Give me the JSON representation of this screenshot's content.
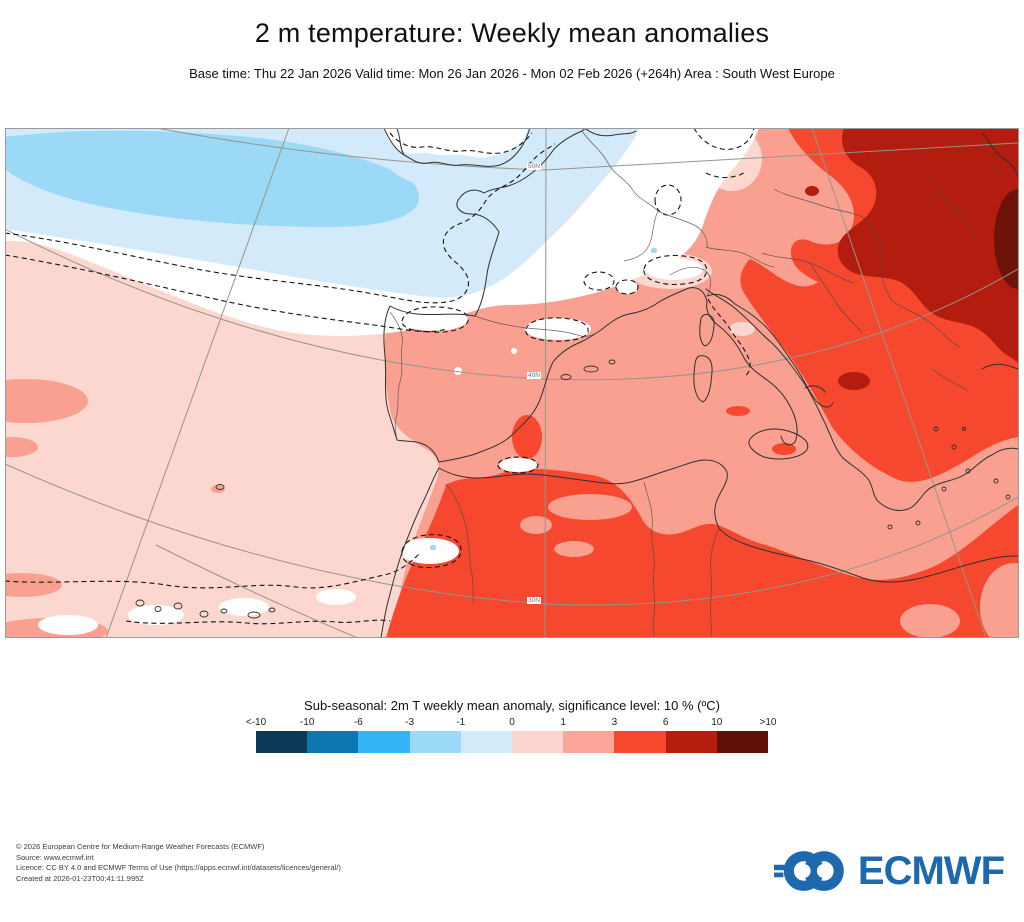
{
  "header": {
    "title": "2 m temperature: Weekly mean anomalies",
    "subtitle": "Base time: Thu 22 Jan 2026 Valid time: Mon 26 Jan 2026 - Mon 02 Feb 2026 (+264h) Area : South West Europe"
  },
  "map": {
    "graticule_labels": [
      "50N",
      "40N",
      "30N"
    ]
  },
  "legend": {
    "title": "Sub-seasonal: 2m T weekly mean anomaly, significance level: 10 % (ºC)",
    "ticks": [
      "<-10",
      "-10",
      "-6",
      "-3",
      "-1",
      "0",
      "1",
      "3",
      "6",
      "10",
      ">10"
    ],
    "colors": [
      "#0d3a57",
      "#0c76b0",
      "#33b5f7",
      "#9cd9f7",
      "#d3eafa",
      "#fcd6ce",
      "#fba699",
      "#f5482f",
      "#b51d0f",
      "#5f0f08"
    ]
  },
  "palette": {
    "blue_light": "#d3eafa",
    "blue_mid": "#9cd9f7",
    "pink": "#fbd7cf",
    "salmon": "#f9a090",
    "red": "#f5482f",
    "dark_red": "#b21d10",
    "maroon": "#6e1309",
    "land_outline": "#30302e",
    "graticule": "#98948a",
    "contour": "#141414",
    "frame": "#9a9a9a"
  },
  "footer": {
    "lines": [
      "© 2026 European Centre for Medium-Range Weather Forecasts (ECMWF)",
      "Source: www.ecmwf.int",
      "Licence: CC BY 4.0 and ECMWF Terms of Use (https://apps.ecmwf.int/datasets/licences/general/)",
      "Created at 2026-01-23T00:41:11.995Z"
    ],
    "logo_text": "ECMWF",
    "logo_color": "#1e69ad"
  }
}
